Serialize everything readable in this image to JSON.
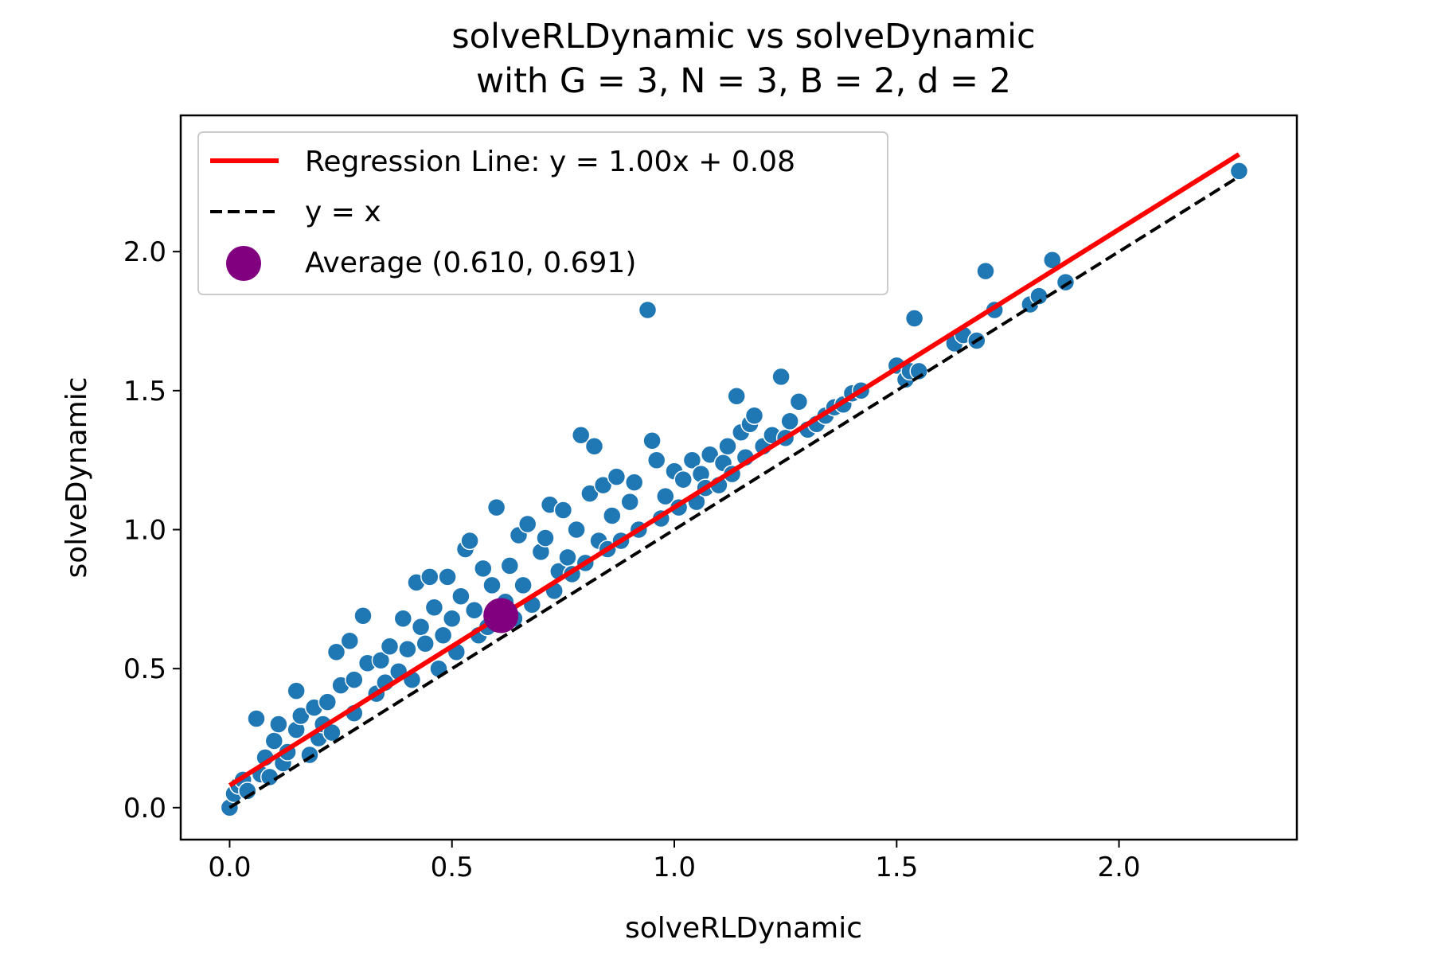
{
  "chart_data": {
    "type": "scatter",
    "title_line1": "solveRLDynamic vs solveDynamic",
    "title_line2": "with G = 3, N = 3, B = 2, d = 2",
    "xlabel": "solveRLDynamic",
    "ylabel": "solveDynamic",
    "xlim": [
      -0.11,
      2.4
    ],
    "ylim": [
      -0.115,
      2.49
    ],
    "xticks": [
      "0.0",
      "0.5",
      "1.0",
      "1.5",
      "2.0"
    ],
    "yticks": [
      "0.0",
      "0.5",
      "1.0",
      "1.5",
      "2.0"
    ],
    "grid": false,
    "legend_position": "upper-left",
    "colors": {
      "points": "#1f77b4",
      "regression": "#ff0000",
      "identity": "#000000",
      "average": "#800080"
    },
    "regression": {
      "slope": 1.0,
      "intercept": 0.08,
      "label": "Regression Line: y = 1.00x + 0.08"
    },
    "identity": {
      "label": "y = x"
    },
    "average": {
      "x": 0.61,
      "y": 0.691,
      "label": "Average (0.610, 0.691)"
    },
    "points": [
      [
        0.0,
        0.0
      ],
      [
        0.01,
        0.05
      ],
      [
        0.02,
        0.08
      ],
      [
        0.03,
        0.1
      ],
      [
        0.04,
        0.06
      ],
      [
        0.06,
        0.32
      ],
      [
        0.07,
        0.12
      ],
      [
        0.08,
        0.18
      ],
      [
        0.09,
        0.11
      ],
      [
        0.1,
        0.24
      ],
      [
        0.11,
        0.3
      ],
      [
        0.12,
        0.16
      ],
      [
        0.13,
        0.2
      ],
      [
        0.15,
        0.42
      ],
      [
        0.15,
        0.28
      ],
      [
        0.16,
        0.33
      ],
      [
        0.18,
        0.19
      ],
      [
        0.19,
        0.36
      ],
      [
        0.2,
        0.25
      ],
      [
        0.21,
        0.3
      ],
      [
        0.22,
        0.38
      ],
      [
        0.23,
        0.27
      ],
      [
        0.24,
        0.56
      ],
      [
        0.25,
        0.44
      ],
      [
        0.27,
        0.6
      ],
      [
        0.28,
        0.46
      ],
      [
        0.28,
        0.34
      ],
      [
        0.3,
        0.69
      ],
      [
        0.31,
        0.52
      ],
      [
        0.33,
        0.41
      ],
      [
        0.34,
        0.53
      ],
      [
        0.35,
        0.45
      ],
      [
        0.36,
        0.58
      ],
      [
        0.38,
        0.49
      ],
      [
        0.39,
        0.68
      ],
      [
        0.4,
        0.57
      ],
      [
        0.41,
        0.46
      ],
      [
        0.42,
        0.81
      ],
      [
        0.43,
        0.65
      ],
      [
        0.44,
        0.59
      ],
      [
        0.45,
        0.83
      ],
      [
        0.46,
        0.72
      ],
      [
        0.47,
        0.5
      ],
      [
        0.48,
        0.62
      ],
      [
        0.49,
        0.83
      ],
      [
        0.5,
        0.68
      ],
      [
        0.51,
        0.56
      ],
      [
        0.52,
        0.76
      ],
      [
        0.53,
        0.93
      ],
      [
        0.54,
        0.96
      ],
      [
        0.55,
        0.71
      ],
      [
        0.56,
        0.62
      ],
      [
        0.57,
        0.86
      ],
      [
        0.58,
        0.65
      ],
      [
        0.59,
        0.8
      ],
      [
        0.6,
        1.08
      ],
      [
        0.61,
        0.66
      ],
      [
        0.62,
        0.74
      ],
      [
        0.63,
        0.87
      ],
      [
        0.64,
        0.68
      ],
      [
        0.65,
        0.98
      ],
      [
        0.66,
        0.8
      ],
      [
        0.67,
        1.02
      ],
      [
        0.68,
        0.73
      ],
      [
        0.7,
        0.92
      ],
      [
        0.71,
        0.97
      ],
      [
        0.72,
        1.09
      ],
      [
        0.73,
        0.78
      ],
      [
        0.74,
        0.85
      ],
      [
        0.75,
        1.07
      ],
      [
        0.76,
        0.9
      ],
      [
        0.77,
        0.84
      ],
      [
        0.78,
        1.0
      ],
      [
        0.79,
        1.34
      ],
      [
        0.8,
        0.88
      ],
      [
        0.81,
        1.13
      ],
      [
        0.82,
        1.3
      ],
      [
        0.83,
        0.96
      ],
      [
        0.84,
        1.16
      ],
      [
        0.85,
        0.93
      ],
      [
        0.86,
        1.05
      ],
      [
        0.87,
        1.19
      ],
      [
        0.88,
        0.96
      ],
      [
        0.9,
        1.1
      ],
      [
        0.91,
        1.17
      ],
      [
        0.92,
        1.0
      ],
      [
        0.94,
        1.79
      ],
      [
        0.95,
        1.32
      ],
      [
        0.96,
        1.25
      ],
      [
        0.97,
        1.04
      ],
      [
        0.98,
        1.12
      ],
      [
        1.0,
        1.21
      ],
      [
        1.01,
        1.08
      ],
      [
        1.02,
        1.18
      ],
      [
        1.04,
        1.25
      ],
      [
        1.05,
        1.1
      ],
      [
        1.06,
        1.2
      ],
      [
        1.07,
        1.15
      ],
      [
        1.08,
        1.27
      ],
      [
        1.1,
        1.16
      ],
      [
        1.11,
        1.24
      ],
      [
        1.12,
        1.3
      ],
      [
        1.13,
        1.2
      ],
      [
        1.14,
        1.48
      ],
      [
        1.15,
        1.35
      ],
      [
        1.16,
        1.26
      ],
      [
        1.17,
        1.38
      ],
      [
        1.18,
        1.41
      ],
      [
        1.2,
        1.3
      ],
      [
        1.22,
        1.34
      ],
      [
        1.24,
        1.55
      ],
      [
        1.25,
        1.33
      ],
      [
        1.26,
        1.39
      ],
      [
        1.28,
        1.46
      ],
      [
        1.3,
        1.36
      ],
      [
        1.32,
        1.38
      ],
      [
        1.34,
        1.41
      ],
      [
        1.36,
        1.44
      ],
      [
        1.38,
        1.45
      ],
      [
        1.4,
        1.49
      ],
      [
        1.42,
        1.5
      ],
      [
        1.5,
        1.59
      ],
      [
        1.52,
        1.54
      ],
      [
        1.53,
        1.57
      ],
      [
        1.54,
        1.76
      ],
      [
        1.55,
        1.57
      ],
      [
        1.63,
        1.67
      ],
      [
        1.65,
        1.7
      ],
      [
        1.68,
        1.68
      ],
      [
        1.7,
        1.93
      ],
      [
        1.72,
        1.79
      ],
      [
        1.8,
        1.81
      ],
      [
        1.82,
        1.84
      ],
      [
        1.85,
        1.97
      ],
      [
        1.88,
        1.89
      ],
      [
        2.27,
        2.29
      ]
    ]
  }
}
